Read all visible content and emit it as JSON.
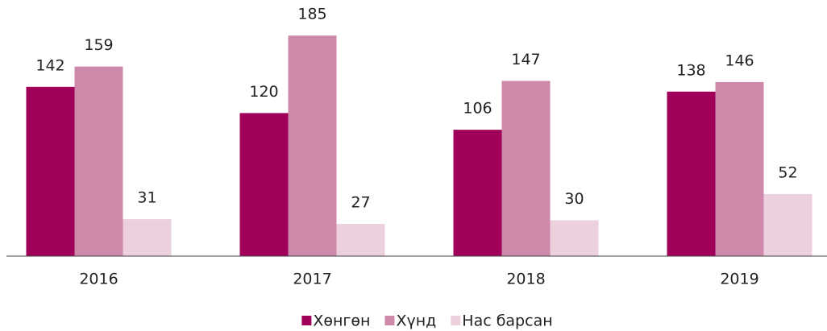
{
  "chart_data": {
    "type": "bar",
    "categories": [
      "2016",
      "2017",
      "2018",
      "2019"
    ],
    "series": [
      {
        "name": "Хөнгөн",
        "color": "#a0005a",
        "values": [
          142,
          120,
          106,
          138
        ]
      },
      {
        "name": "Хүнд",
        "color": "#cd88aa",
        "values": [
          159,
          185,
          147,
          146
        ]
      },
      {
        "name": "Нас барсан",
        "color": "#ecd0de",
        "values": [
          31,
          27,
          30,
          52
        ]
      }
    ],
    "ylim": [
      0,
      200
    ],
    "legend": "bottom"
  }
}
